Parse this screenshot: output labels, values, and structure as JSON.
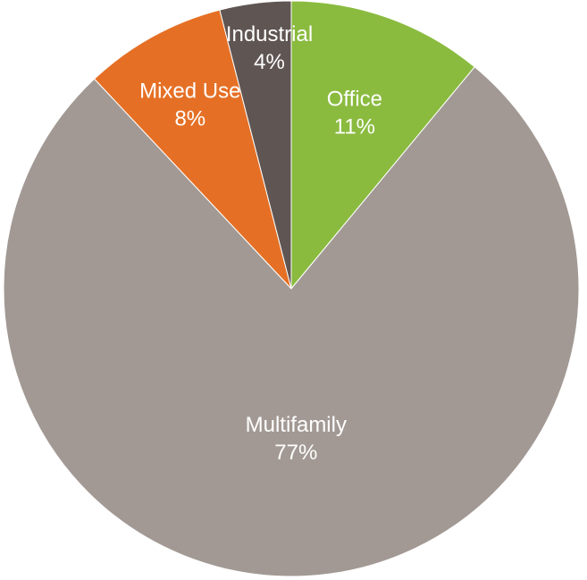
{
  "chart_data": {
    "type": "pie",
    "start_angle_deg": 0,
    "direction": "clockwise",
    "slices": [
      {
        "category": "Office",
        "value": 11,
        "label": "11%",
        "color": "#8ABB3F"
      },
      {
        "category": "Multifamily",
        "value": 77,
        "label": "77%",
        "color": "#A29994"
      },
      {
        "category": "Mixed Use",
        "value": 8,
        "label": "8%",
        "color": "#E57025"
      },
      {
        "category": "Industrial",
        "value": 4,
        "label": "4%",
        "color": "#5F5552"
      }
    ]
  }
}
